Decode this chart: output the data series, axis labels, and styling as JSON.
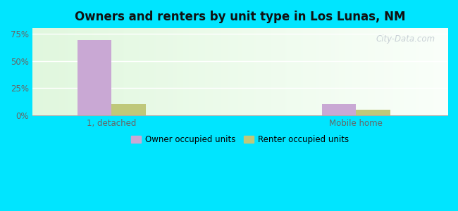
{
  "title": "Owners and renters by unit type in Los Lunas, NM",
  "categories": [
    "1, detached",
    "Mobile home"
  ],
  "owner_values": [
    69.0,
    10.0
  ],
  "renter_values": [
    10.0,
    5.0
  ],
  "owner_color": "#c9a8d4",
  "renter_color": "#bfc87a",
  "yticks": [
    0,
    25,
    50,
    75
  ],
  "ytick_labels": [
    "0%",
    "25%",
    "50%",
    "75%"
  ],
  "legend_owner": "Owner occupied units",
  "legend_renter": "Renter occupied units",
  "background_outer": "#00e5ff",
  "watermark": "City-Data.com",
  "bar_width": 0.28,
  "ylim": 80
}
